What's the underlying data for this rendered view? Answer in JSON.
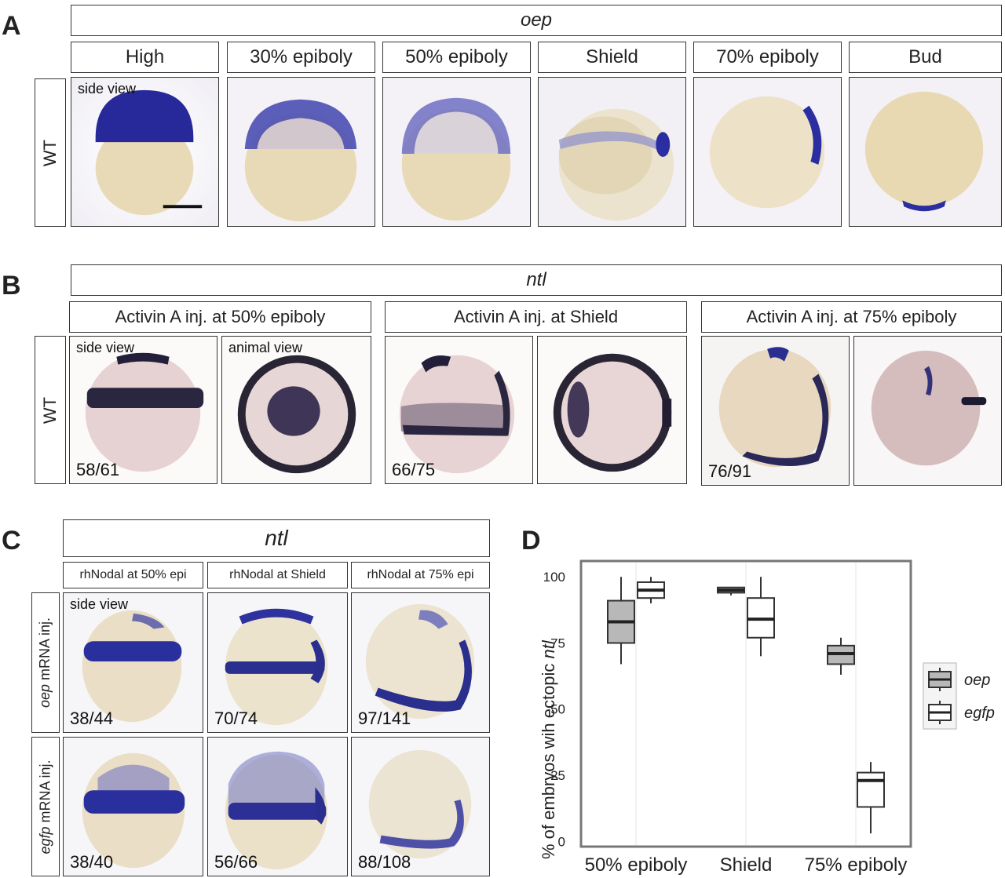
{
  "panels": {
    "a": {
      "letter": "A",
      "gene": "oep",
      "stages": [
        "High",
        "30% epiboly",
        "50% epiboly",
        "Shield",
        "70% epiboly",
        "Bud"
      ],
      "row_label": "WT",
      "view_label": "side view"
    },
    "b": {
      "letter": "B",
      "gene": "ntl",
      "groups": [
        "Activin A inj. at 50% epiboly",
        "Activin A inj. at Shield",
        "Activin A inj. at 75% epiboly"
      ],
      "row_label": "WT",
      "view_side": "side view",
      "view_animal": "animal view",
      "counts": [
        "58/61",
        "66/75",
        "76/91"
      ]
    },
    "c": {
      "letter": "C",
      "gene": "ntl",
      "groups": [
        "rhNodal at 50% epi",
        "rhNodal at Shield",
        "rhNodal at 75% epi"
      ],
      "row1_gene": "oep",
      "row1_rest": " mRNA inj.",
      "row2_gene": "egfp",
      "row2_rest": " mRNA inj.",
      "view_label": "side view",
      "row1_counts": [
        "38/44",
        "70/74",
        "97/141"
      ],
      "row2_counts": [
        "38/40",
        "56/66",
        "88/108"
      ]
    },
    "d": {
      "letter": "D",
      "ylabel_pre": "% of embryos wih ectopic ",
      "ylabel_gene": "ntl"
    }
  },
  "colors": {
    "stain_blue": "#2b2fa0",
    "stain_dark": "#262040",
    "embryo_yellow": "#eadcb4",
    "embryo_pink": "#e5d0d3",
    "oep_fill": "#b8b8b8",
    "egfp_fill": "#ffffff"
  },
  "chart_data": {
    "type": "box",
    "categories": [
      "50% epiboly",
      "Shield",
      "75% epiboly"
    ],
    "ylim": [
      0,
      100
    ],
    "yticks": [
      0,
      25,
      50,
      75,
      100
    ],
    "legend_position": "right",
    "series": [
      {
        "name": "oep",
        "boxes": [
          {
            "min": 67,
            "q1": 75,
            "median": 83,
            "q3": 91,
            "max": 100
          },
          {
            "min": 93,
            "q1": 94,
            "median": 95,
            "q3": 96,
            "max": 96
          },
          {
            "min": 63,
            "q1": 67,
            "median": 71,
            "q3": 74,
            "max": 77
          }
        ]
      },
      {
        "name": "egfp",
        "boxes": [
          {
            "min": 90,
            "q1": 92,
            "median": 95,
            "q3": 98,
            "max": 100
          },
          {
            "min": 70,
            "q1": 77,
            "median": 84,
            "q3": 92,
            "max": 100
          },
          {
            "min": 3,
            "q1": 13,
            "median": 23,
            "q3": 26,
            "max": 30
          }
        ]
      }
    ]
  }
}
